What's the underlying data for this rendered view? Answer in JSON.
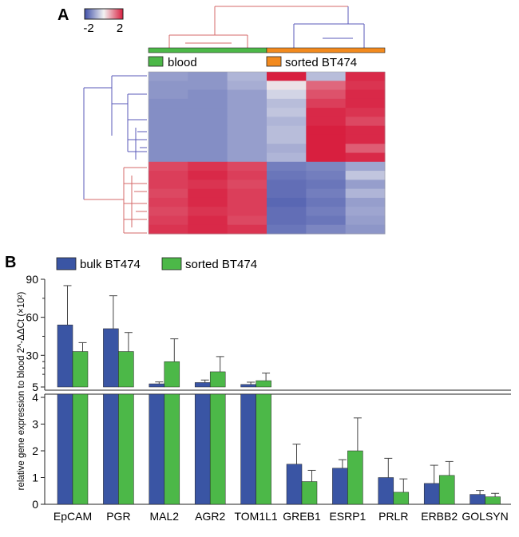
{
  "colors": {
    "blood": "#4cb848",
    "sorted": "#f28a1e",
    "bulk_bar": "#3a55a4",
    "sorted_bar": "#4cb848",
    "heat_low": "#3f4fa8",
    "heat_high": "#d81f3f",
    "tree_red": "#d46a6a",
    "tree_blue": "#5a5ab8"
  },
  "panel_a": {
    "label": "A",
    "scale_min": "-2",
    "scale_max": "2",
    "group_labels": [
      "blood",
      "sorted BT474"
    ],
    "heatmap": {
      "columns": 6,
      "rows": [
        [
          -1.0,
          -1.1,
          -0.7,
          2.0,
          -0.6,
          1.9
        ],
        [
          -1.1,
          -1.1,
          -0.8,
          0.1,
          1.3,
          1.8
        ],
        [
          -1.1,
          -1.2,
          -1.0,
          -0.3,
          1.5,
          1.9
        ],
        [
          -1.2,
          -1.2,
          -1.0,
          -0.6,
          1.7,
          1.9
        ],
        [
          -1.2,
          -1.2,
          -1.0,
          -0.5,
          1.9,
          1.8
        ],
        [
          -1.2,
          -1.2,
          -1.0,
          -0.7,
          1.9,
          1.6
        ],
        [
          -1.2,
          -1.2,
          -1.0,
          -0.6,
          2.0,
          1.9
        ],
        [
          -1.2,
          -1.2,
          -1.0,
          -0.6,
          2.0,
          1.9
        ],
        [
          -1.2,
          -1.2,
          -1.0,
          -0.8,
          2.0,
          1.4
        ],
        [
          -1.2,
          -1.2,
          -1.0,
          -0.7,
          2.0,
          1.9
        ],
        [
          1.6,
          1.8,
          1.6,
          -1.4,
          -1.3,
          -0.9
        ],
        [
          1.7,
          1.9,
          1.7,
          -1.5,
          -1.4,
          -0.5
        ],
        [
          1.7,
          1.8,
          1.6,
          -1.6,
          -1.5,
          -1.0
        ],
        [
          1.6,
          1.9,
          1.7,
          -1.6,
          -1.4,
          -0.7
        ],
        [
          1.7,
          1.9,
          1.7,
          -1.7,
          -1.5,
          -1.0
        ],
        [
          1.6,
          1.8,
          1.7,
          -1.6,
          -1.4,
          -0.9
        ],
        [
          1.7,
          1.9,
          1.6,
          -1.6,
          -1.5,
          -1.0
        ],
        [
          1.8,
          1.9,
          1.8,
          -1.5,
          -1.3,
          -1.1
        ]
      ]
    }
  },
  "panel_b": {
    "label": "B",
    "legend": [
      "bulk BT474",
      "sorted BT474"
    ],
    "ylabel": "relative gene expression to blood 2^-ΔΔCt (×10²)",
    "chart_data": {
      "type": "bar",
      "categories": [
        "EpCAM",
        "PGR",
        "MAL2",
        "AGR2",
        "TOM1L1",
        "GREB1",
        "ESRP1",
        "PRLR",
        "ERBB2",
        "GOLSYN"
      ],
      "series": [
        {
          "name": "bulk BT474",
          "values": [
            54,
            51,
            7.5,
            8.5,
            7,
            1.5,
            1.35,
            1.0,
            0.78,
            0.37
          ],
          "errors": [
            31,
            26,
            1.5,
            2,
            1.8,
            0.75,
            0.32,
            0.72,
            0.68,
            0.15
          ]
        },
        {
          "name": "sorted BT474",
          "values": [
            33,
            33,
            25,
            17,
            10,
            0.85,
            2.0,
            0.45,
            1.08,
            0.28
          ],
          "errors": [
            7,
            15,
            18,
            12,
            6,
            0.42,
            1.23,
            0.5,
            0.52,
            0.13
          ]
        }
      ],
      "y_upper_ticks": [
        "90",
        "60",
        "30",
        "5"
      ],
      "y_lower_ticks": [
        "4",
        "3",
        "2",
        "1",
        "0"
      ],
      "ylim_upper": [
        5,
        90
      ],
      "ylim_lower": [
        0,
        4
      ]
    }
  }
}
